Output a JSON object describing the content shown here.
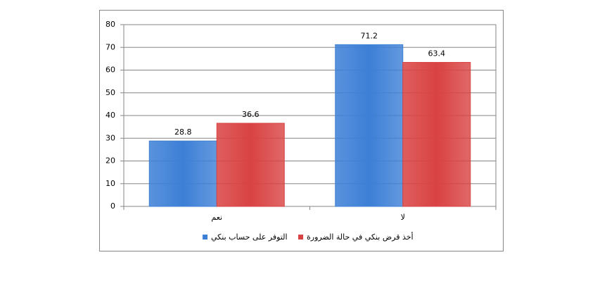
{
  "chart_data": {
    "type": "bar",
    "categories": [
      "نعم",
      "لا"
    ],
    "series": [
      {
        "name": "التوفر على حساب بنكي",
        "color": "#3c7fd6",
        "values": [
          28.8,
          71.2
        ]
      },
      {
        "name": "أخذ قرض بنكي في حالة الضرورة",
        "color": "#d94242",
        "values": [
          36.6,
          63.4
        ]
      }
    ],
    "ylim": [
      0,
      80
    ],
    "yticks": [
      0,
      10,
      20,
      30,
      40,
      50,
      60,
      70,
      80
    ],
    "grid": true,
    "legend": "bottom"
  }
}
